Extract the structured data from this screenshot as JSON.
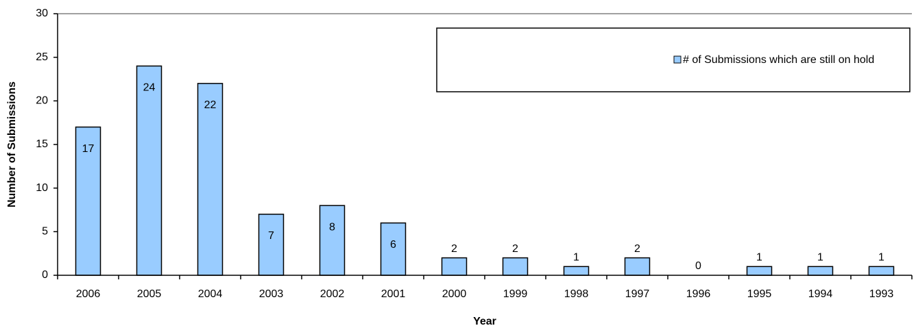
{
  "chart_data": {
    "type": "bar",
    "categories": [
      "2006",
      "2005",
      "2004",
      "2003",
      "2002",
      "2001",
      "2000",
      "1999",
      "1998",
      "1997",
      "1996",
      "1995",
      "1994",
      "1993"
    ],
    "series": [
      {
        "name": "# of Submissions which are still on hold",
        "color": "#99ccff",
        "values": [
          17,
          24,
          22,
          7,
          8,
          6,
          2,
          2,
          1,
          2,
          0,
          1,
          1,
          1
        ]
      }
    ],
    "x_label": "Year",
    "y_label": "Number of Submissions",
    "ylim": [
      0,
      30
    ],
    "yticks": [
      0,
      5,
      10,
      15,
      20,
      25,
      30
    ],
    "legend": "top-right"
  }
}
